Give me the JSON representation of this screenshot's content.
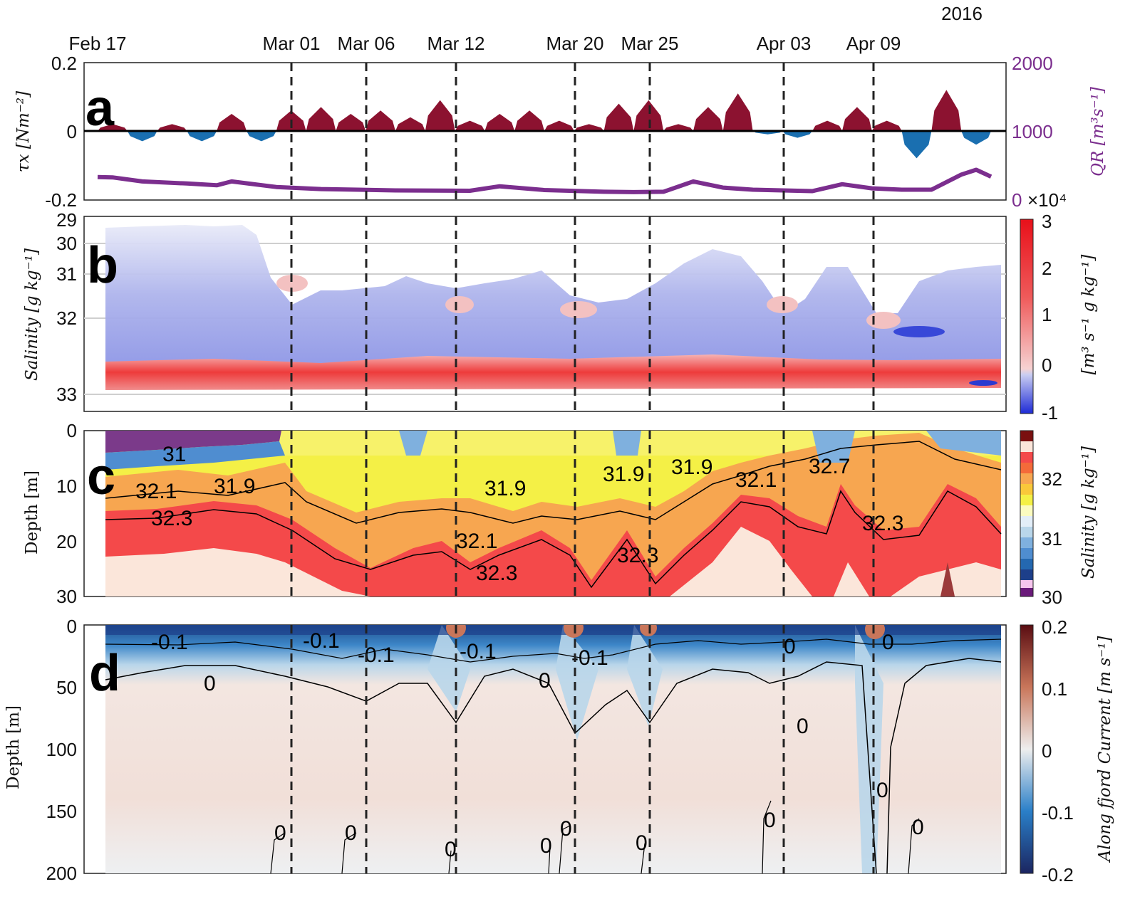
{
  "chart_data": {
    "type": "multi-panel time series",
    "year_label": "2016",
    "date_labels": [
      "Feb 17",
      "Mar 01",
      "Mar 06",
      "Mar 12",
      "Mar 20",
      "Mar 25",
      "Apr 03",
      "Apr 09"
    ],
    "event_dates": [
      "Mar 01",
      "Mar 06",
      "Mar 12",
      "Mar 20",
      "Mar 25",
      "Apr 03",
      "Apr 09"
    ],
    "panels": [
      {
        "letter": "a",
        "type": "area",
        "ylabel_left": "τx [Nm⁻²]",
        "ylabel_right": "QR [m³s⁻¹]",
        "yticks_left": [
          "0.2",
          "0",
          "-0.2"
        ],
        "ylim_left": [
          -0.2,
          0.2
        ],
        "yticks_right": [
          "2000",
          "1000",
          "0"
        ],
        "ylim_right": [
          0,
          2000
        ],
        "right_axis_color": "#7b2e8e",
        "positive_color": "#8c1230",
        "negative_color": "#1a6fb0",
        "wind_stress_days": [
          0,
          2,
          4,
          6,
          8,
          10,
          12,
          14,
          16,
          18,
          20,
          22,
          24,
          26,
          28,
          30,
          32,
          34,
          36,
          38,
          40,
          42,
          44,
          46,
          48,
          50,
          52,
          54,
          56,
          58,
          60
        ],
        "wind_stress": [
          0.02,
          -0.03,
          0.02,
          -0.03,
          0.05,
          -0.03,
          0.06,
          0.07,
          0.05,
          0.06,
          0.04,
          0.09,
          0.03,
          0.05,
          0.06,
          0.03,
          0.02,
          0.08,
          0.09,
          0.02,
          0.07,
          0.11,
          -0.01,
          -0.02,
          0.03,
          0.07,
          0.03,
          -0.08,
          0.12,
          -0.04,
          0.04
        ],
        "discharge_days": [
          0,
          1,
          3,
          6,
          8,
          9,
          12,
          15,
          20,
          25,
          27,
          30,
          34,
          36,
          38,
          40,
          42,
          44,
          46,
          48,
          50,
          52,
          54,
          56,
          58,
          59,
          60
        ],
        "discharge": [
          335,
          330,
          270,
          240,
          215,
          270,
          190,
          160,
          140,
          135,
          200,
          145,
          120,
          115,
          120,
          270,
          180,
          150,
          140,
          130,
          230,
          170,
          150,
          150,
          370,
          440,
          340
        ],
        "exponent_label": "×10⁴"
      },
      {
        "letter": "b",
        "type": "heatmap",
        "ylabel": "Salinity [g kg⁻¹]",
        "yticks": [
          "29",
          "30",
          "31",
          "32",
          "33"
        ],
        "ylim": [
          29,
          33.1
        ],
        "colorbar_label": "[m³ s⁻¹ g kg⁻¹]",
        "colorbar_ticks": [
          "3",
          "2",
          "1",
          "0",
          "-1"
        ],
        "colorbar_range": [
          -1,
          3
        ]
      },
      {
        "letter": "c",
        "type": "filled contour",
        "ylabel": "Depth [m]",
        "yticks": [
          "0",
          "10",
          "20",
          "30"
        ],
        "ylim": [
          30,
          0
        ],
        "colorbar_label": "Salinity [g kg⁻¹]",
        "colorbar_ticks": [
          "32",
          "31",
          "30"
        ],
        "colorbar_range": [
          30,
          32.7
        ],
        "contour_labels": [
          "31",
          "32.1",
          "31.9",
          "32.3",
          "31.9",
          "32.1",
          "32.3",
          "31.9",
          "32.3",
          "31.9",
          "32.1",
          "32.7",
          "32.3"
        ]
      },
      {
        "letter": "d",
        "type": "filled contour",
        "ylabel": "Depth [m]",
        "yticks": [
          "0",
          "50",
          "100",
          "150",
          "200"
        ],
        "ylim": [
          200,
          0
        ],
        "colorbar_label": "Along fjord Current [m s⁻¹]",
        "colorbar_ticks": [
          "0.2",
          "0.1",
          "0",
          "-0.1",
          "-0.2"
        ],
        "colorbar_range": [
          -0.2,
          0.2
        ],
        "contour_labels": [
          "-0.1",
          "-0.1",
          "-0.1",
          "-0.1",
          "-0.1",
          "0",
          "0",
          "0",
          "0",
          "0",
          "0",
          "0",
          "0",
          "0",
          "0",
          "0",
          "0",
          "0",
          "0"
        ]
      }
    ]
  }
}
